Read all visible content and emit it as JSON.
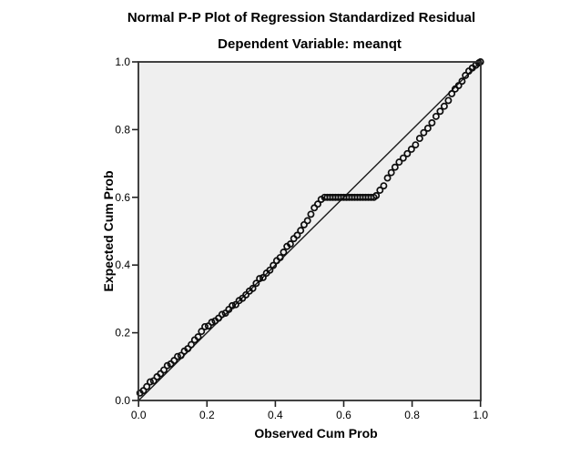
{
  "chart_data": {
    "type": "scatter",
    "title": "Normal P-P Plot of Regression Standardized Residual",
    "subtitle": "Dependent Variable: meanqt",
    "xlabel": "Observed Cum Prob",
    "ylabel": "Expected Cum Prob",
    "xlim": [
      0.0,
      1.0
    ],
    "ylim": [
      0.0,
      1.0
    ],
    "x_ticks": [
      "0.0",
      "0.2",
      "0.4",
      "0.6",
      "0.8",
      "1.0"
    ],
    "y_ticks": [
      "0.0",
      "0.2",
      "0.4",
      "0.6",
      "0.8",
      "1.0"
    ],
    "x_tick_values": [
      0.0,
      0.2,
      0.4,
      0.6,
      0.8,
      1.0
    ],
    "y_tick_values": [
      0.0,
      0.2,
      0.4,
      0.6,
      0.8,
      1.0
    ],
    "grid": false,
    "legend": "none",
    "plot_background": "#efefef",
    "frame_color": "#2e2e2e",
    "marker": "open-circle",
    "marker_color": "#0d0d0d",
    "reference_line": {
      "from": [
        0.0,
        0.0
      ],
      "to": [
        1.0,
        1.0
      ],
      "color": "#1a1a1a"
    },
    "points": [
      [
        0.004,
        0.022
      ],
      [
        0.014,
        0.029
      ],
      [
        0.024,
        0.041
      ],
      [
        0.034,
        0.055
      ],
      [
        0.044,
        0.058
      ],
      [
        0.054,
        0.07
      ],
      [
        0.064,
        0.079
      ],
      [
        0.074,
        0.09
      ],
      [
        0.084,
        0.103
      ],
      [
        0.094,
        0.108
      ],
      [
        0.104,
        0.118
      ],
      [
        0.114,
        0.13
      ],
      [
        0.124,
        0.133
      ],
      [
        0.134,
        0.146
      ],
      [
        0.144,
        0.153
      ],
      [
        0.154,
        0.165
      ],
      [
        0.164,
        0.179
      ],
      [
        0.174,
        0.188
      ],
      [
        0.184,
        0.204
      ],
      [
        0.194,
        0.218
      ],
      [
        0.204,
        0.22
      ],
      [
        0.214,
        0.231
      ],
      [
        0.224,
        0.235
      ],
      [
        0.234,
        0.243
      ],
      [
        0.244,
        0.254
      ],
      [
        0.254,
        0.258
      ],
      [
        0.264,
        0.269
      ],
      [
        0.274,
        0.28
      ],
      [
        0.284,
        0.283
      ],
      [
        0.294,
        0.295
      ],
      [
        0.304,
        0.302
      ],
      [
        0.314,
        0.312
      ],
      [
        0.324,
        0.323
      ],
      [
        0.334,
        0.331
      ],
      [
        0.344,
        0.346
      ],
      [
        0.354,
        0.36
      ],
      [
        0.364,
        0.363
      ],
      [
        0.374,
        0.376
      ],
      [
        0.384,
        0.385
      ],
      [
        0.394,
        0.399
      ],
      [
        0.404,
        0.413
      ],
      [
        0.414,
        0.422
      ],
      [
        0.424,
        0.438
      ],
      [
        0.434,
        0.455
      ],
      [
        0.444,
        0.462
      ],
      [
        0.454,
        0.478
      ],
      [
        0.464,
        0.488
      ],
      [
        0.474,
        0.502
      ],
      [
        0.484,
        0.519
      ],
      [
        0.494,
        0.531
      ],
      [
        0.504,
        0.55
      ],
      [
        0.514,
        0.569
      ],
      [
        0.524,
        0.58
      ],
      [
        0.534,
        0.594
      ],
      [
        0.544,
        0.6
      ],
      [
        0.552,
        0.6
      ],
      [
        0.56,
        0.6
      ],
      [
        0.568,
        0.6
      ],
      [
        0.576,
        0.6
      ],
      [
        0.584,
        0.6
      ],
      [
        0.592,
        0.6
      ],
      [
        0.6,
        0.6
      ],
      [
        0.608,
        0.6
      ],
      [
        0.616,
        0.6
      ],
      [
        0.624,
        0.6
      ],
      [
        0.632,
        0.6
      ],
      [
        0.64,
        0.6
      ],
      [
        0.648,
        0.6
      ],
      [
        0.656,
        0.6
      ],
      [
        0.664,
        0.6
      ],
      [
        0.672,
        0.6
      ],
      [
        0.68,
        0.6
      ],
      [
        0.688,
        0.6
      ],
      [
        0.695,
        0.605
      ],
      [
        0.706,
        0.621
      ],
      [
        0.717,
        0.634
      ],
      [
        0.728,
        0.657
      ],
      [
        0.739,
        0.673
      ],
      [
        0.75,
        0.689
      ],
      [
        0.762,
        0.704
      ],
      [
        0.774,
        0.716
      ],
      [
        0.786,
        0.729
      ],
      [
        0.798,
        0.742
      ],
      [
        0.81,
        0.755
      ],
      [
        0.822,
        0.774
      ],
      [
        0.834,
        0.791
      ],
      [
        0.846,
        0.804
      ],
      [
        0.858,
        0.82
      ],
      [
        0.87,
        0.839
      ],
      [
        0.882,
        0.854
      ],
      [
        0.894,
        0.869
      ],
      [
        0.906,
        0.886
      ],
      [
        0.916,
        0.906
      ],
      [
        0.926,
        0.92
      ],
      [
        0.936,
        0.93
      ],
      [
        0.946,
        0.943
      ],
      [
        0.956,
        0.96
      ],
      [
        0.966,
        0.973
      ],
      [
        0.976,
        0.982
      ],
      [
        0.986,
        0.99
      ],
      [
        0.995,
        0.997
      ],
      [
        1.0,
        1.0
      ]
    ]
  }
}
